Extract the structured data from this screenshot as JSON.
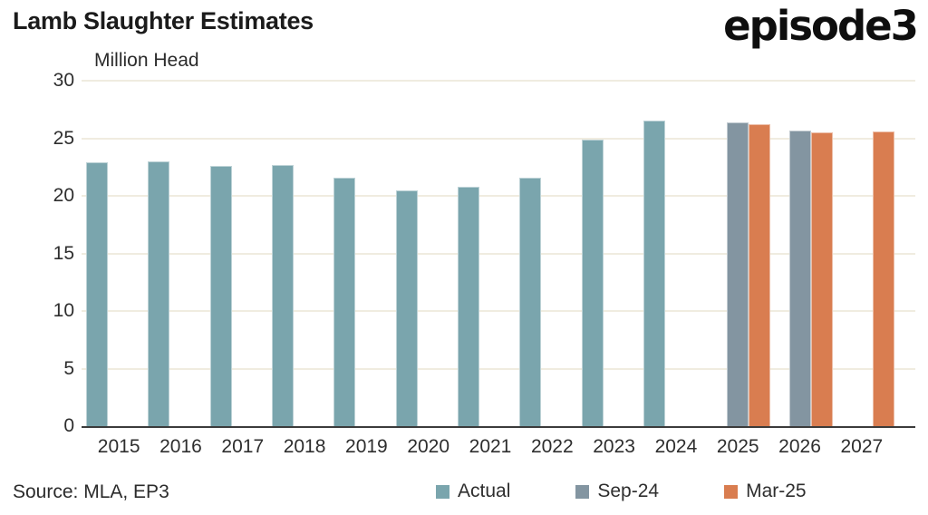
{
  "header": {
    "title": "Lamb Slaughter Estimates",
    "logo_text": "episode3"
  },
  "footer": {
    "source": "Source: MLA, EP3"
  },
  "colors": {
    "actual": "#7aa5ad",
    "sep24": "#8395a1",
    "mar25": "#d97d50",
    "gridline": "#f0ece0",
    "axis": "#3b3b3b",
    "text": "#2e2e2e"
  },
  "chart_data": {
    "type": "bar",
    "title": "Lamb Slaughter Estimates",
    "ylabel": "Million Head",
    "xlabel": "",
    "categories": [
      "2015",
      "2016",
      "2017",
      "2018",
      "2019",
      "2020",
      "2021",
      "2022",
      "2023",
      "2024",
      "2025",
      "2026",
      "2027"
    ],
    "series": [
      {
        "name": "Actual",
        "color": "#7aa5ad",
        "values": [
          22.9,
          23.0,
          22.6,
          22.7,
          21.6,
          20.5,
          20.8,
          21.6,
          24.9,
          26.5,
          null,
          null,
          null
        ]
      },
      {
        "name": "Sep-24",
        "color": "#8395a1",
        "values": [
          null,
          null,
          null,
          null,
          null,
          null,
          null,
          null,
          null,
          null,
          26.4,
          25.7,
          null
        ]
      },
      {
        "name": "Mar-25",
        "color": "#d97d50",
        "values": [
          null,
          null,
          null,
          null,
          null,
          null,
          null,
          null,
          null,
          null,
          26.2,
          25.5,
          25.6
        ]
      }
    ],
    "ylim": [
      0,
      30
    ],
    "yticks": [
      0,
      5,
      10,
      15,
      20,
      25,
      30
    ],
    "grid": "horizontal",
    "legend_position": "bottom"
  }
}
